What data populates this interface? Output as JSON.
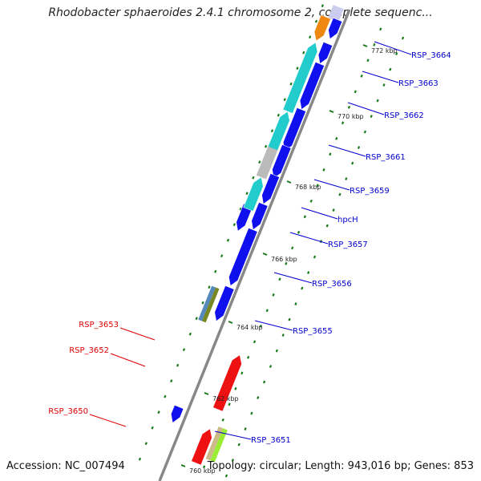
{
  "map": {
    "title": "Rhodobacter sphaeroides 2.4.1 chromosome 2, complete sequenc...",
    "accession": "Accession: NC_007494",
    "info": "Topology: circular; Length: 943,016 bp; Genes: 853",
    "colors": {
      "backbone": "#888888",
      "tick_dot": "#1a7a1a",
      "plus_label": "#0000cc",
      "minus_label": "#dd0000",
      "gene_blue": "#1010ee",
      "gene_cyan": "#22cccc",
      "gene_red": "#ee1111",
      "gene_orange": "#ee8811",
      "gene_gray": "#bbbbbb",
      "gene_lime": "#99ee33",
      "gene_tan": "#ccbb88",
      "gene_olive": "#778822",
      "gene_steel": "#5588bb"
    },
    "kbp_ticks": [
      {
        "label": "772 kbp",
        "pos_kbp": 772
      },
      {
        "label": "770 kbp",
        "pos_kbp": 770
      },
      {
        "label": "768 kbp",
        "pos_kbp": 768
      },
      {
        "label": "766 kbp",
        "pos_kbp": 766
      },
      {
        "label": "764 kbp",
        "pos_kbp": 764
      },
      {
        "label": "762 kbp",
        "pos_kbp": 762
      },
      {
        "label": "760 kbp",
        "pos_kbp": 760
      }
    ],
    "gene_labels_plus": [
      {
        "name": "RSP_3664"
      },
      {
        "name": "RSP_3663"
      },
      {
        "name": "RSP_3662"
      },
      {
        "name": "RSP_3661"
      },
      {
        "name": "RSP_3659"
      },
      {
        "name": "hpcH"
      },
      {
        "name": "RSP_3657"
      },
      {
        "name": "RSP_3656"
      },
      {
        "name": "RSP_3655"
      },
      {
        "name": "RSP_3651"
      }
    ],
    "gene_labels_minus": [
      {
        "name": "RSP_3653"
      },
      {
        "name": "RSP_3652"
      },
      {
        "name": "RSP_3650"
      }
    ]
  }
}
